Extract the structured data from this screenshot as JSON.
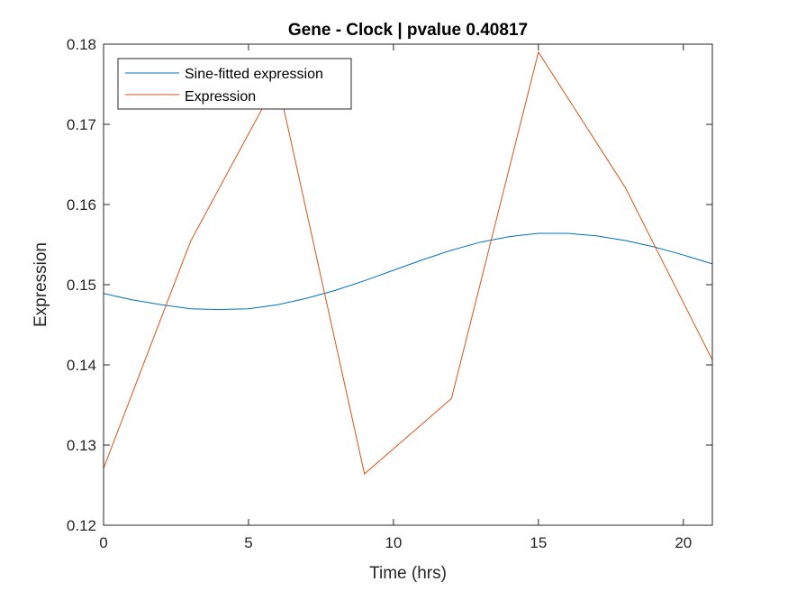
{
  "chart_data": {
    "type": "line",
    "title": "Gene - Clock | pvalue 0.40817",
    "xlabel": "Time (hrs)",
    "ylabel": "Expression",
    "xlim": [
      0,
      21
    ],
    "ylim": [
      0.12,
      0.18
    ],
    "xticks": [
      0,
      5,
      10,
      15,
      20
    ],
    "xtick_labels": [
      "0",
      "5",
      "10",
      "15",
      "20"
    ],
    "yticks": [
      0.12,
      0.13,
      0.14,
      0.15,
      0.16,
      0.17,
      0.18
    ],
    "ytick_labels": [
      "0.12",
      "0.13",
      "0.14",
      "0.15",
      "0.16",
      "0.17",
      "0.18"
    ],
    "grid": false,
    "legend_position": "top-left",
    "series": [
      {
        "name": "Sine-fitted expression",
        "color": "#0072BD",
        "x": [
          0,
          1,
          2,
          3,
          4,
          5,
          6,
          7,
          8,
          9,
          10,
          11,
          12,
          13,
          14,
          15,
          16,
          17,
          18,
          19,
          20,
          21
        ],
        "values": [
          0.1489,
          0.1481,
          0.1475,
          0.147,
          0.1469,
          0.147,
          0.1475,
          0.1483,
          0.1493,
          0.1505,
          0.1518,
          0.1531,
          0.1543,
          0.1553,
          0.156,
          0.1564,
          0.1564,
          0.1561,
          0.1555,
          0.1547,
          0.1537,
          0.1526
        ]
      },
      {
        "name": "Expression",
        "color": "#D95319",
        "x": [
          0,
          3,
          6,
          9,
          12,
          15,
          18,
          21
        ],
        "values": [
          0.1271,
          0.1554,
          0.1755,
          0.1264,
          0.1358,
          0.179,
          0.1621,
          0.1406
        ]
      }
    ]
  }
}
